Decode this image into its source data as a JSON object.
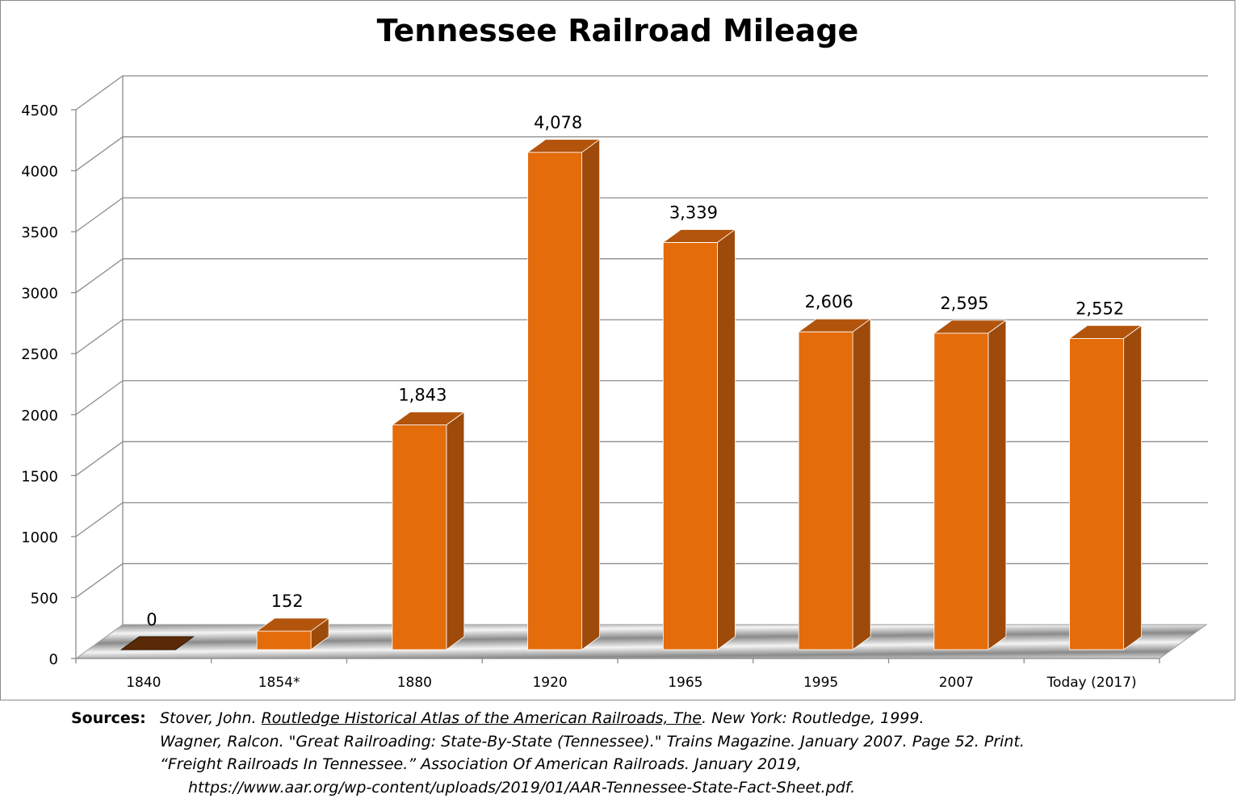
{
  "chart_data": {
    "type": "bar",
    "title": "Tennessee Railroad Mileage",
    "categories": [
      "1840",
      "1854*",
      "1880",
      "1920",
      "1965",
      "1995",
      "2007",
      "Today  (2017)"
    ],
    "values": [
      0,
      152,
      1843,
      4078,
      3339,
      2606,
      2595,
      2552
    ],
    "data_labels": [
      "0",
      "152",
      "1,843",
      "4,078",
      "3,339",
      "2,606",
      "2,595",
      "2,552"
    ],
    "yticks": [
      "0",
      "500",
      "1000",
      "1500",
      "2000",
      "2500",
      "3000",
      "3500",
      "4000",
      "4500"
    ],
    "ylim": [
      0,
      4500
    ],
    "grid": true,
    "legend": "none",
    "style": "3d-column",
    "colors": {
      "bar_front": "#e46c0a",
      "bar_top": "#b3540c",
      "bar_side": "#9e4a0a",
      "zero_bar": "#5a2a06",
      "grid": "#8c8c8c"
    }
  },
  "sources": {
    "label": "Sources:",
    "lines": [
      {
        "pre": "Stover, John. ",
        "title": "Routledge Historical Atlas of the American Railroads, The",
        "post": ". New York: Routledge, 1999."
      },
      {
        "text": "Wagner, Ralcon. \"Great Railroading: State-By-State (Tennessee).\" Trains Magazine. January 2007. Page 52. Print."
      },
      {
        "text": "“Freight Railroads In Tennessee.” Association Of American Railroads. January 2019,"
      },
      {
        "text": "https://www.aar.org/wp-content/uploads/2019/01/AAR-Tennessee-State-Fact-Sheet.pdf."
      }
    ]
  }
}
